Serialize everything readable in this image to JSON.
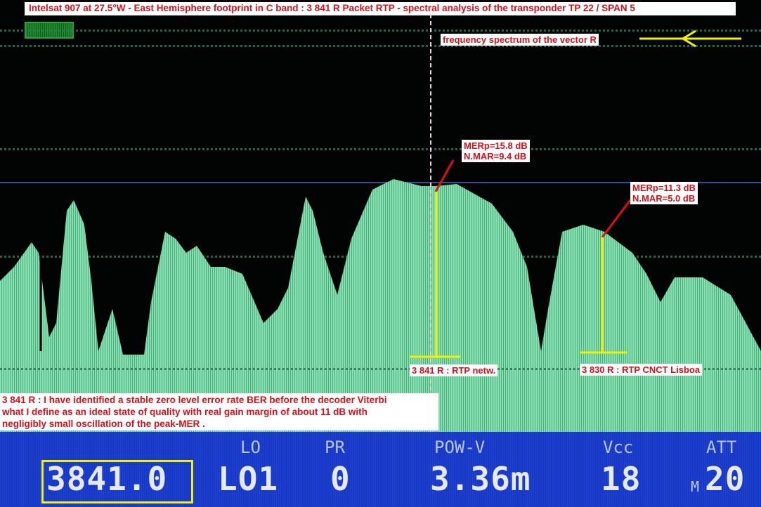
{
  "title": "Intelsat 907 at 27.5°W - East Hemisphere footprint in C band : 3 841 R Packet RTP -  spectral analysis of the transponder TP 22 / SPAN 5",
  "arrow_label": "frequency spectrum of the vector R",
  "markers": [
    {
      "mer": "MERp=15.8 dB",
      "mar": "N.MAR=9.4 dB",
      "label": "3 841 R : RTP netw."
    },
    {
      "mer": "MERp=11.3 dB",
      "mar": "N.MAR=5.0 dB",
      "label": "3 830 R : RTP CNCT Lisboa"
    }
  ],
  "note": [
    "3 841 R : I have identified a stable zero level error rate BER before the decoder Viterbi",
    "what I define as an ideal state of quality with real gain margin of about 11 dB with",
    "negligibly small oscillation of the peak-MER ."
  ],
  "status": {
    "freq": "3841.0",
    "lo_label": "LO",
    "lo_value": "LO1",
    "pr_label": "PR",
    "pr_value": "0",
    "pow_label": "POW-V",
    "pow_value": "3.36m",
    "vcc_label": "Vcc",
    "vcc_value": "18",
    "att_label": "ATT",
    "att_prefix": "M",
    "att_value": "20"
  },
  "colors": {
    "spectrum": "#7ed9a8",
    "annotation": "#d8101a",
    "marker": "#f2f200",
    "status_bar": "#1638c8"
  }
}
